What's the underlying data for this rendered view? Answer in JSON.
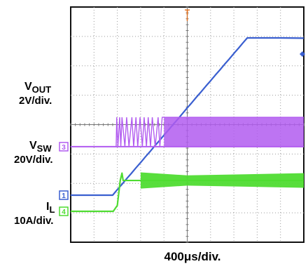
{
  "chart_data": {
    "type": "line",
    "title": "",
    "x_axis": {
      "label": "",
      "divisions": 10,
      "unit_per_div": "400μs",
      "range_us": [
        0,
        4000
      ]
    },
    "y_axis": {
      "divisions": 8,
      "range_div": [
        0,
        8
      ]
    },
    "grid": true,
    "trigger_marker": {
      "symbol": "T",
      "x_us": 2000
    },
    "channels": [
      {
        "id": "1",
        "symbol": "V",
        "subscript": "OUT",
        "scale": "2V/div.",
        "color": "#3a5fd0",
        "ground_div": 1.6,
        "x_us": [
          0,
          280,
          720,
          800,
          880,
          960,
          1040,
          1120,
          1200,
          1280,
          1360,
          1440,
          1520,
          1600,
          1680,
          1760,
          1840,
          1920,
          2000,
          2080,
          2160,
          2240,
          2320,
          2400,
          2480,
          2560,
          2640,
          2720,
          2800,
          2880,
          2960,
          3030,
          3600,
          4000
        ],
        "y_div": [
          1.6,
          1.6,
          1.6,
          1.79,
          1.97,
          2.16,
          2.34,
          2.53,
          2.71,
          2.9,
          3.08,
          3.27,
          3.45,
          3.64,
          3.82,
          4.01,
          4.19,
          4.38,
          4.57,
          4.75,
          4.94,
          5.12,
          5.31,
          5.49,
          5.68,
          5.86,
          6.05,
          6.23,
          6.42,
          6.6,
          6.79,
          6.95,
          6.95,
          6.94
        ]
      },
      {
        "id": "3",
        "symbol": "V",
        "subscript": "SW",
        "scale": "20V/div.",
        "color": "#b25cf0",
        "ground_div": 3.25,
        "switch_high_div": 4.25,
        "x_us": [
          0,
          780,
          790,
          810,
          840,
          860,
          880,
          930,
          960,
          1000,
          1050,
          1080,
          1120,
          1150,
          1190,
          1230,
          1260,
          1300,
          1330,
          1370,
          1400,
          1450,
          1500,
          1530,
          1570,
          1600,
          4000
        ],
        "y_div": [
          3.25,
          3.25,
          4.25,
          3.25,
          4.25,
          3.25,
          4.25,
          3.25,
          4.25,
          3.25,
          4.25,
          3.25,
          4.25,
          3.25,
          4.25,
          3.25,
          4.25,
          3.25,
          4.25,
          3.25,
          4.25,
          3.25,
          4.25,
          3.25,
          4.25,
          4.25,
          4.25
        ],
        "continuous_switching_from_us": 1600
      },
      {
        "id": "4",
        "symbol": "I",
        "subscript": "L",
        "scale": "10A/div.",
        "color": "#4fdc32",
        "ground_div": 1.05,
        "x_us": [
          0,
          730,
          800,
          850,
          880,
          900,
          1200,
          2000,
          3000,
          4000
        ],
        "y_div": [
          1.05,
          1.05,
          1.25,
          2.1,
          2.35,
          2.1,
          2.1,
          2.1,
          2.1,
          2.1
        ],
        "ripple_band_div": [
          [
            1200,
            0.55
          ],
          [
            2000,
            0.35
          ],
          [
            3000,
            0.42
          ],
          [
            4000,
            0.5
          ]
        ]
      }
    ],
    "timebase_label": "400μs/div."
  }
}
